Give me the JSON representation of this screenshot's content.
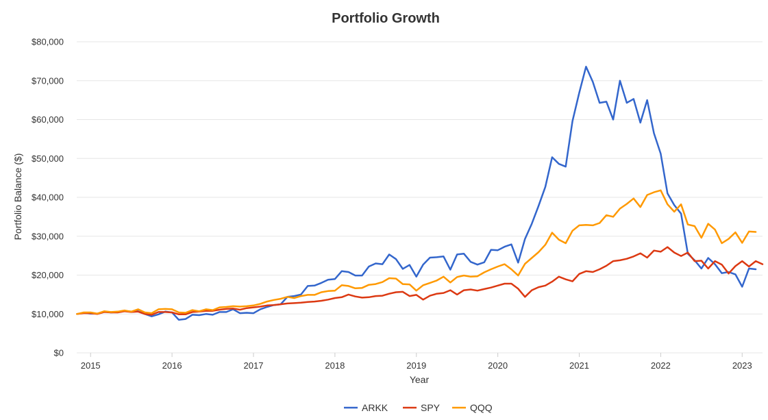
{
  "chart_data": {
    "type": "line",
    "title": "Portfolio Growth",
    "xlabel": "Year",
    "ylabel": "Portfolio Balance ($)",
    "xlim": [
      2014.83,
      2023.25
    ],
    "ylim": [
      0,
      80000
    ],
    "y_ticks": [
      0,
      10000,
      20000,
      30000,
      40000,
      50000,
      60000,
      70000,
      80000
    ],
    "y_tick_labels": [
      "$0",
      "$10,000",
      "$20,000",
      "$30,000",
      "$40,000",
      "$50,000",
      "$60,000",
      "$70,000",
      "$80,000"
    ],
    "x_ticks": [
      2015,
      2016,
      2017,
      2018,
      2019,
      2020,
      2021,
      2022,
      2023
    ],
    "x_tick_labels": [
      "2015",
      "2016",
      "2017",
      "2018",
      "2019",
      "2020",
      "2021",
      "2022",
      "2023"
    ],
    "grid": true,
    "legend_position": "bottom-center",
    "start": 2014.8333,
    "step": 0.0833333,
    "series": [
      {
        "name": "ARKK",
        "color": "#3366cc",
        "values": [
          10000,
          10300,
          10100,
          10100,
          10600,
          10400,
          10500,
          10800,
          10600,
          10700,
          10000,
          9400,
          9900,
          10600,
          10400,
          8500,
          8700,
          9800,
          9700,
          10000,
          9800,
          10500,
          10500,
          11200,
          10200,
          10300,
          10200,
          11200,
          11800,
          12300,
          12500,
          14400,
          14600,
          15000,
          17200,
          17300,
          18000,
          18800,
          19000,
          21000,
          20800,
          19900,
          19900,
          22200,
          23000,
          22800,
          25300,
          24100,
          21600,
          22600,
          19600,
          22700,
          24500,
          24600,
          24800,
          21400,
          25300,
          25500,
          23400,
          22700,
          23300,
          26500,
          26400,
          27300,
          27900,
          23200,
          29300,
          33200,
          37800,
          42700,
          50300,
          48600,
          47900,
          59600,
          66900,
          73600,
          69700,
          64300,
          64600,
          60000,
          70000,
          64300,
          65300,
          59200,
          65000,
          56500,
          51200,
          41000,
          38000,
          35800,
          25500,
          23800,
          21700,
          24400,
          22800,
          20500,
          20800,
          20200,
          17000,
          21700,
          21500
        ]
      },
      {
        "name": "SPY",
        "color": "#dc3912",
        "values": [
          10000,
          10200,
          10200,
          10000,
          10500,
          10400,
          10400,
          10700,
          10500,
          10600,
          10000,
          9800,
          10500,
          10500,
          10400,
          9900,
          9900,
          10500,
          10600,
          10800,
          10800,
          11100,
          11300,
          11400,
          11100,
          11500,
          11700,
          11900,
          12200,
          12300,
          12500,
          12700,
          12800,
          12900,
          13100,
          13200,
          13400,
          13700,
          14100,
          14300,
          15000,
          14500,
          14200,
          14300,
          14600,
          14700,
          15200,
          15600,
          15700,
          14600,
          14900,
          13700,
          14700,
          15200,
          15400,
          16100,
          15000,
          16100,
          16300,
          16000,
          16400,
          16800,
          17300,
          17800,
          17800,
          16500,
          14400,
          16100,
          16900,
          17300,
          18300,
          19600,
          18900,
          18400,
          20300,
          21000,
          20800,
          21500,
          22400,
          23600,
          23800,
          24200,
          24800,
          25600,
          24500,
          26300,
          26000,
          27200,
          25800,
          24900,
          25800,
          23600,
          23700,
          21700,
          23600,
          22700,
          20400,
          22300,
          23600,
          22200,
          23600,
          22800
        ]
      },
      {
        "name": "QQQ",
        "color": "#ff9900",
        "values": [
          10000,
          10400,
          10400,
          10100,
          10700,
          10500,
          10600,
          10900,
          10600,
          11200,
          10400,
          10200,
          11200,
          11300,
          11200,
          10400,
          10300,
          11000,
          10700,
          11200,
          11000,
          11700,
          11800,
          12000,
          11900,
          12000,
          12200,
          12600,
          13200,
          13600,
          13900,
          14400,
          14100,
          14600,
          14900,
          14900,
          15600,
          15900,
          16000,
          17400,
          17200,
          16600,
          16700,
          17500,
          17700,
          18200,
          19200,
          19100,
          17700,
          17600,
          16000,
          17400,
          18000,
          18600,
          19600,
          18100,
          19500,
          19900,
          19600,
          19700,
          20700,
          21500,
          22200,
          22800,
          21500,
          19900,
          22900,
          24400,
          25900,
          27800,
          30900,
          29100,
          28200,
          31400,
          32800,
          32900,
          32800,
          33400,
          35400,
          35000,
          37100,
          38300,
          39700,
          37500,
          40600,
          41300,
          41800,
          38200,
          36300,
          38200,
          33000,
          32600,
          29600,
          33200,
          31700,
          28200,
          29300,
          31000,
          28300,
          31200,
          31100
        ]
      }
    ]
  }
}
